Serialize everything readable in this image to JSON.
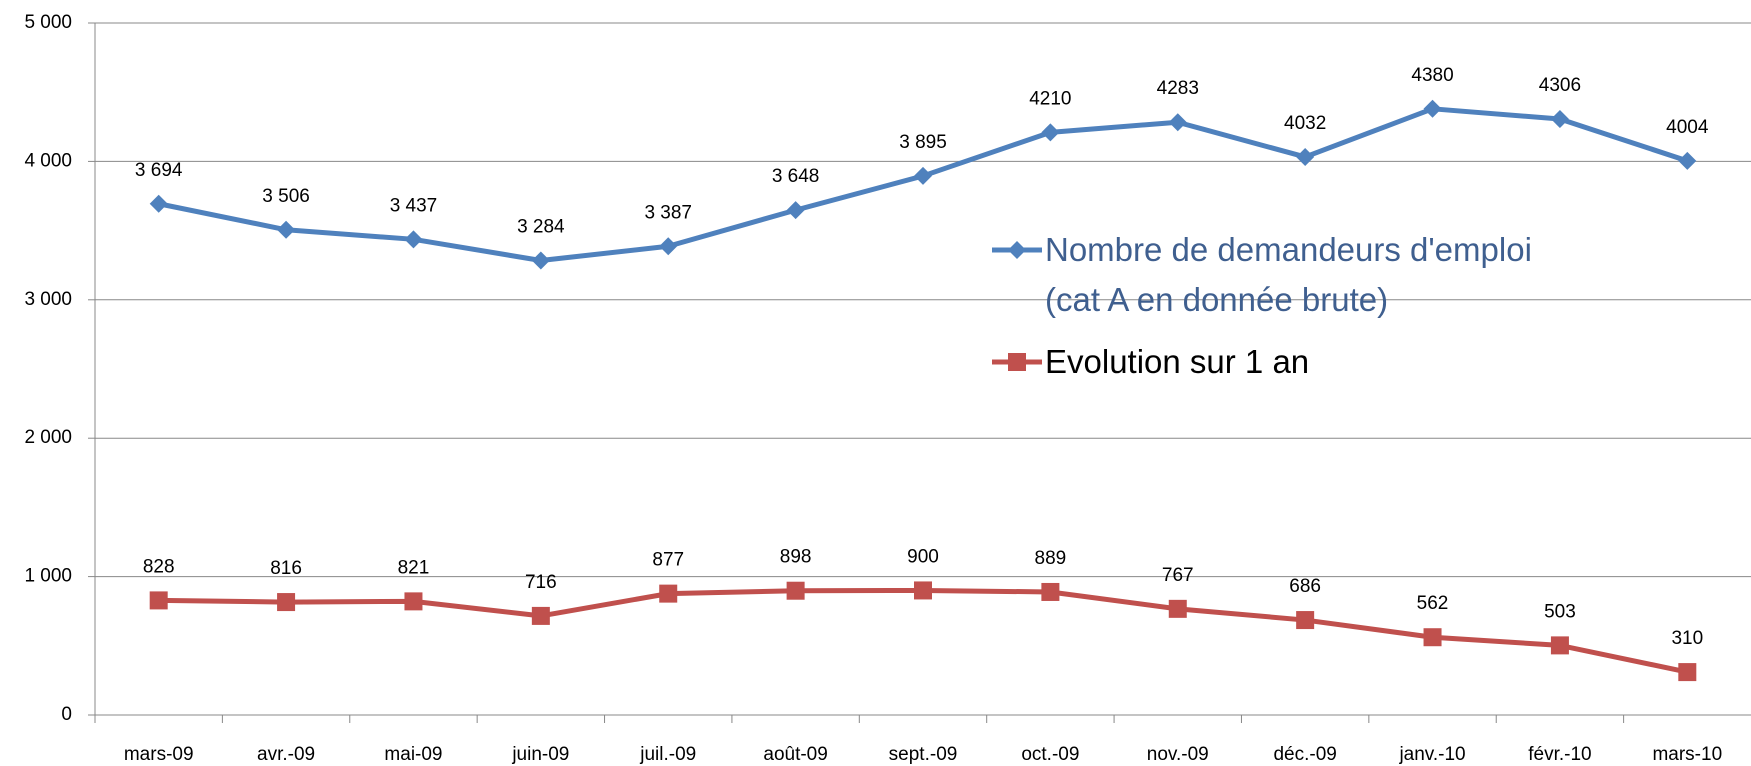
{
  "chart_data": {
    "type": "line",
    "categories": [
      "mars-09",
      "avr.-09",
      "mai-09",
      "juin-09",
      "juil.-09",
      "août-09",
      "sept.-09",
      "oct.-09",
      "nov.-09",
      "déc.-09",
      "janv.-10",
      "févr.-10",
      "mars-10"
    ],
    "series": [
      {
        "name": "Nombre de demandeurs d'emploi (cat A en donnée brute)",
        "color": "#4f81bd",
        "marker": "diamond",
        "values": [
          3694,
          3506,
          3437,
          3284,
          3387,
          3648,
          3895,
          4210,
          4283,
          4032,
          4380,
          4306,
          4004
        ],
        "value_labels": [
          "3 694",
          "3 506",
          "3 437",
          "3 284",
          "3 387",
          "3 648",
          "3 895",
          "4210",
          "4283",
          "4032",
          "4380",
          "4306",
          "4004"
        ]
      },
      {
        "name": "Evolution sur 1 an",
        "color": "#c0504d",
        "marker": "square",
        "values": [
          828,
          816,
          821,
          716,
          877,
          898,
          900,
          889,
          767,
          686,
          562,
          503,
          310
        ]
      }
    ],
    "ylim": [
      0,
      5000
    ],
    "yticks": [
      {
        "value": 0,
        "label": "0"
      },
      {
        "value": 1000,
        "label": "1 000"
      },
      {
        "value": 2000,
        "label": "2 000"
      },
      {
        "value": 3000,
        "label": "3 000"
      },
      {
        "value": 4000,
        "label": "4 000"
      },
      {
        "value": 5000,
        "label": "5 000"
      }
    ],
    "grid": true
  }
}
